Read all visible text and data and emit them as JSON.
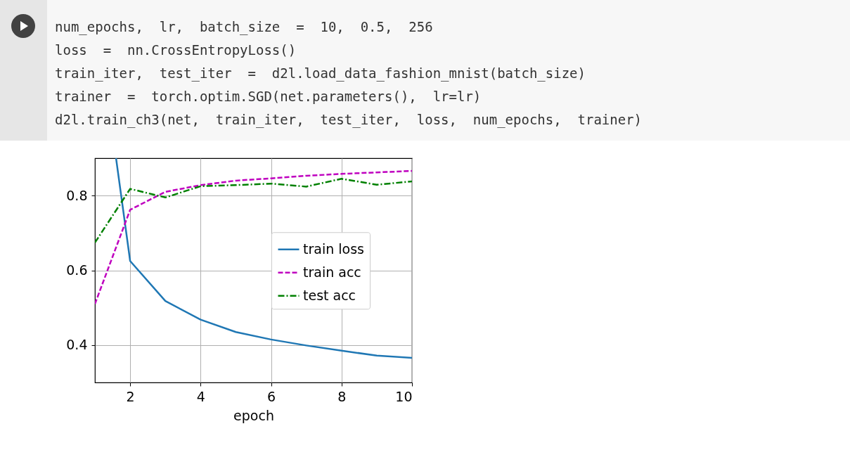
{
  "chart_data": {
    "type": "line",
    "xlabel": "epoch",
    "annotations": [
      "num_epochs,  lr,  batch_size  =  10,  0.5,  256",
      "loss  =  nn.CrossEntropyLoss()",
      "train_iter,  test_iter  =  d2l.load_data_fashion_mnist(batch_size)",
      "trainer  =  torch.optim.SGD(net.parameters(),  lr=lr)",
      "d2l.train_ch3(net,  train_iter,  test_iter,  loss,  num_epochs,  trainer)"
    ],
    "x": [
      1,
      2,
      3,
      4,
      5,
      6,
      7,
      8,
      9,
      10
    ],
    "series": [
      {
        "name": "train loss",
        "color": "#1f77b4",
        "line_style": "solid",
        "x": [
          1.6,
          2,
          3,
          4,
          5,
          6,
          7,
          8,
          9,
          10
        ],
        "values": [
          0.9,
          0.625,
          0.518,
          0.468,
          0.435,
          0.415,
          0.399,
          0.385,
          0.372,
          0.366
        ]
      },
      {
        "name": "train acc",
        "color": "#bf00bf",
        "line_style": "dashed",
        "values": [
          0.51,
          0.762,
          0.81,
          0.828,
          0.84,
          0.846,
          0.853,
          0.858,
          0.862,
          0.866
        ]
      },
      {
        "name": "test acc",
        "color": "#008000",
        "line_style": "dashdot",
        "values": [
          0.674,
          0.818,
          0.795,
          0.825,
          0.828,
          0.832,
          0.824,
          0.845,
          0.829,
          0.838
        ]
      }
    ],
    "xlim": [
      1,
      10
    ],
    "xticks": [
      2,
      4,
      6,
      8,
      10
    ],
    "ylim": [
      0.3,
      0.9
    ],
    "yticks": [
      0.4,
      0.6,
      0.8
    ],
    "grid": true,
    "legend": "right"
  }
}
